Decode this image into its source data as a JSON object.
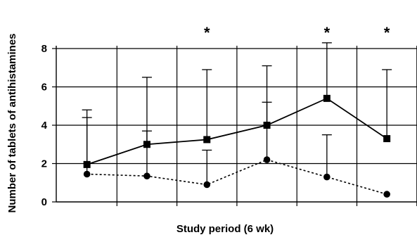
{
  "chart_data": {
    "type": "line",
    "title": "",
    "xlabel": "Study period (6 wk)",
    "ylabel": "Number of tablets of antihistamines",
    "ylim": [
      0,
      8
    ],
    "yticks": [
      0,
      2,
      4,
      6,
      8
    ],
    "ytick_labels": [
      "0",
      "2",
      "4",
      "6",
      "8"
    ],
    "xlim": [
      0.5,
      6.5
    ],
    "grid": true,
    "legend": "none",
    "x": [
      1,
      2,
      3,
      4,
      5,
      6
    ],
    "significance": [
      {
        "x": 3,
        "label": "*"
      },
      {
        "x": 5,
        "label": "*"
      },
      {
        "x": 6,
        "label": "*"
      }
    ],
    "series": [
      {
        "marker": "square",
        "line_style": "solid",
        "color": "#000000",
        "values": [
          1.95,
          3.0,
          3.25,
          4.0,
          5.4,
          3.3
        ],
        "error_upper": [
          4.8,
          6.5,
          6.9,
          7.1,
          8.3,
          6.9
        ]
      },
      {
        "marker": "circle",
        "line_style": "dotted",
        "color": "#000000",
        "values": [
          1.45,
          1.35,
          0.9,
          2.2,
          1.3,
          0.4
        ],
        "error_upper": [
          4.4,
          3.7,
          2.7,
          5.2,
          3.5,
          null
        ]
      }
    ]
  }
}
